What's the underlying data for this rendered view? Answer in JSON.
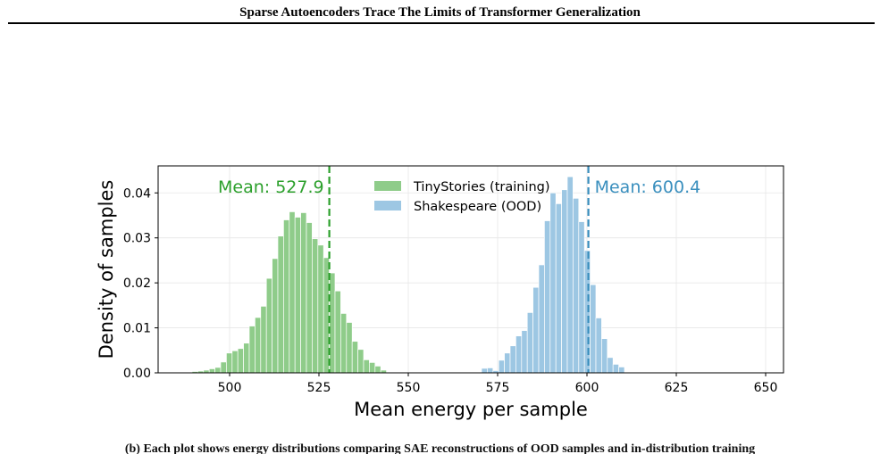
{
  "header": {
    "running_title": "Sparse Autoencoders Trace The Limits of Transformer Generalization"
  },
  "caption": {
    "text": "(b) Each plot shows energy distributions comparing SAE reconstructions of OOD samples and in-distribution training"
  },
  "colors": {
    "train": "#8fcc8a",
    "ood": "#9dc7e3",
    "train_mean": "#2ca02c",
    "ood_mean": "#3a8fbe"
  },
  "chart_data": {
    "type": "histogram",
    "xlabel": "Mean energy per sample",
    "ylabel": "Density of samples",
    "xlim": [
      480,
      655
    ],
    "ylim": [
      0,
      0.046
    ],
    "xticks": [
      500,
      525,
      550,
      575,
      600,
      625,
      650
    ],
    "yticks": [
      0.0,
      0.01,
      0.02,
      0.03,
      0.04
    ],
    "grid": true,
    "legend_position": "top-center",
    "series": [
      {
        "name": "TinyStories (training)",
        "mean": 527.9,
        "mean_label": "Mean: 527.9",
        "bin_start": 489.5,
        "bin_width": 1.6,
        "densities": [
          0.0003,
          0.0004,
          0.0006,
          0.0009,
          0.0012,
          0.0024,
          0.0044,
          0.0049,
          0.0054,
          0.0066,
          0.0104,
          0.0123,
          0.0148,
          0.021,
          0.0254,
          0.0304,
          0.034,
          0.0358,
          0.0346,
          0.0356,
          0.0334,
          0.0298,
          0.0284,
          0.0256,
          0.0222,
          0.0182,
          0.0132,
          0.0112,
          0.007,
          0.0052,
          0.0029,
          0.0023,
          0.0015,
          0.0006
        ]
      },
      {
        "name": "Shakespeare (OOD)",
        "mean": 600.4,
        "mean_label": "Mean: 600.4",
        "bin_start": 570.5,
        "bin_width": 1.6,
        "densities": [
          0.001,
          0.0011,
          0.0005,
          0.0028,
          0.0044,
          0.006,
          0.0082,
          0.0094,
          0.0134,
          0.019,
          0.024,
          0.0338,
          0.04,
          0.0376,
          0.0407,
          0.0436,
          0.0388,
          0.0336,
          0.0272,
          0.0196,
          0.0122,
          0.0076,
          0.0034,
          0.0019,
          0.0013
        ]
      }
    ]
  }
}
